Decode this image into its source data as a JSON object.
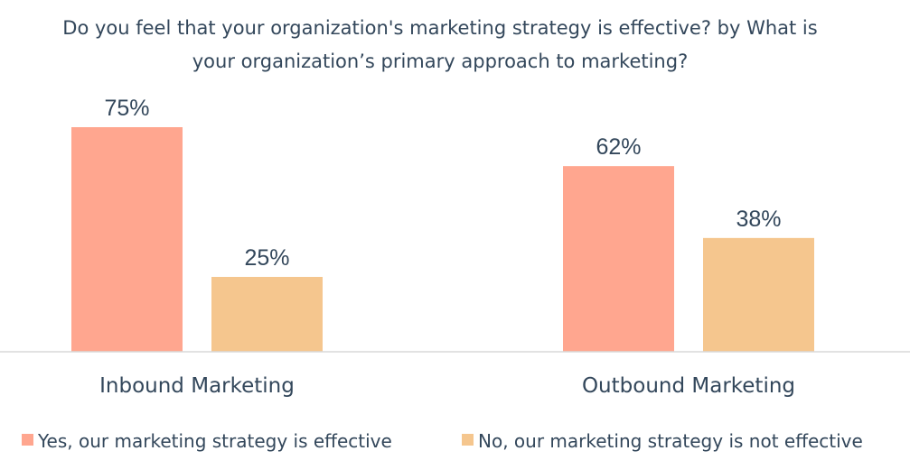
{
  "chart_data": {
    "type": "bar",
    "title_lines": [
      "Do you feel that your organization's marketing strategy is effective? by What is",
      "your organization’s primary approach to marketing?"
    ],
    "categories": [
      "Inbound Marketing",
      "Outbound Marketing"
    ],
    "series": [
      {
        "name": "Yes, our marketing strategy is effective",
        "values": [
          75,
          62
        ],
        "labels": [
          "75%",
          "62%"
        ],
        "color": "#ffa68f"
      },
      {
        "name": "No, our marketing strategy is not effective",
        "values": [
          25,
          38
        ],
        "labels": [
          "25%",
          "38%"
        ],
        "color": "#f5c68e"
      }
    ],
    "ylim": [
      0,
      75
    ],
    "value_unit": "%",
    "grid": false,
    "legend_position": "bottom",
    "colors": {
      "text": "#33475b",
      "baseline": "#d9d9d9"
    }
  }
}
